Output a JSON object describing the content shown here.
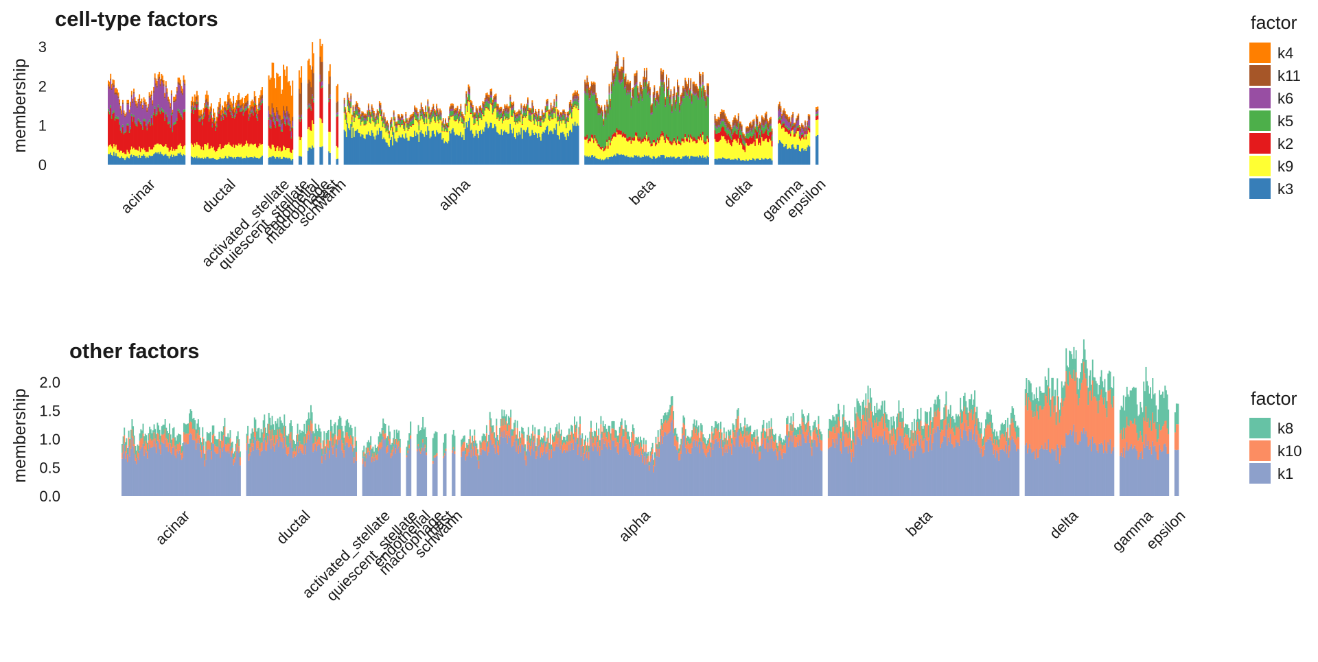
{
  "chart_data": [
    {
      "type": "stacked-bar",
      "title": "cell-type factors",
      "ylabel": "membership",
      "xlabel": "",
      "ylim": [
        0,
        3
      ],
      "yticks": [
        0,
        1,
        2,
        3
      ],
      "ytick_labels": [
        "0",
        "1",
        "2",
        "3"
      ],
      "grid": false,
      "legend": {
        "title": "factor",
        "position": "right",
        "labels": [
          "k4",
          "k11",
          "k6",
          "k5",
          "k2",
          "k9",
          "k3"
        ]
      },
      "colors": {
        "k4": "#FF7F00",
        "k11": "#A65628",
        "k6": "#984EA3",
        "k5": "#4DAF4A",
        "k2": "#E41A1C",
        "k9": "#FFFF33",
        "k3": "#377EB8"
      },
      "stack_order_bottom_to_top": [
        "k3",
        "k9",
        "k2",
        "k5",
        "k6",
        "k11",
        "k4"
      ],
      "groups": [
        {
          "label": "acinar",
          "width": 140,
          "profile": {
            "k3": 0.25,
            "k9": 0.2,
            "k2": 0.75,
            "k5": 0.06,
            "k6": 0.55,
            "k11": 0.05,
            "k4": 0.1
          }
        },
        {
          "label": "ductal",
          "width": 130,
          "profile": {
            "k3": 0.18,
            "k9": 0.3,
            "k2": 0.8,
            "k5": 0.05,
            "k6": 0.05,
            "k11": 0.08,
            "k4": 0.15
          }
        },
        {
          "label": "activated_stellate",
          "width": 45,
          "profile": {
            "k3": 0.18,
            "k9": 0.25,
            "k2": 0.6,
            "k5": 0.05,
            "k6": 0.15,
            "k11": 0.12,
            "k4": 0.9
          }
        },
        {
          "label": "quiescent_stellate",
          "width": 6,
          "profile": {
            "k3": 0.2,
            "k9": 0.5,
            "k2": 0.5,
            "k5": 0.05,
            "k6": 0.05,
            "k11": 0.7,
            "k4": 0.4
          }
        },
        {
          "label": "endothelial",
          "width": 12,
          "profile": {
            "k3": 0.4,
            "k9": 0.5,
            "k2": 0.5,
            "k5": 0.05,
            "k6": 0.05,
            "k11": 0.6,
            "k4": 0.5
          }
        },
        {
          "label": "macrophage",
          "width": 6,
          "profile": {
            "k3": 0.45,
            "k9": 0.6,
            "k2": 0.8,
            "k5": 0.05,
            "k6": 0.1,
            "k11": 0.5,
            "k4": 0.4
          }
        },
        {
          "label": "mast",
          "width": 4,
          "profile": {
            "k3": 0.3,
            "k9": 0.5,
            "k2": 0.8,
            "k5": 0.05,
            "k6": 0.05,
            "k11": 0.4,
            "k4": 0.3
          }
        },
        {
          "label": "schwann",
          "width": 4,
          "profile": {
            "k3": 0.15,
            "k9": 0.3,
            "k2": 0.7,
            "k5": 0.05,
            "k6": 0.05,
            "k11": 0.3,
            "k4": 0.4
          }
        },
        {
          "label": "alpha",
          "width": 425,
          "profile": {
            "k3": 0.85,
            "k9": 0.35,
            "k2": 0.02,
            "k5": 0.12,
            "k6": 0.05,
            "k11": 0.08,
            "k4": 0.05
          }
        },
        {
          "label": "beta",
          "width": 225,
          "profile": {
            "k3": 0.2,
            "k9": 0.4,
            "k2": 0.08,
            "k5": 1.05,
            "k6": 0.05,
            "k11": 0.2,
            "k4": 0.05
          }
        },
        {
          "label": "delta",
          "width": 105,
          "profile": {
            "k3": 0.15,
            "k9": 0.45,
            "k2": 0.2,
            "k5": 0.15,
            "k6": 0.05,
            "k11": 0.15,
            "k4": 0.05
          }
        },
        {
          "label": "gamma",
          "width": 58,
          "profile": {
            "k3": 0.5,
            "k9": 0.4,
            "k2": 0.1,
            "k5": 0.05,
            "k6": 0.15,
            "k11": 0.1,
            "k4": 0.05
          }
        },
        {
          "label": "epsilon",
          "width": 5,
          "profile": {
            "k3": 0.6,
            "k9": 0.4,
            "k2": 0.1,
            "k5": 0.05,
            "k6": 0.05,
            "k11": 0.05,
            "k4": 0.05
          }
        }
      ]
    },
    {
      "type": "stacked-bar",
      "title": "other factors",
      "ylabel": "membership",
      "xlabel": "",
      "ylim": [
        0,
        2.0
      ],
      "yticks": [
        0,
        0.5,
        1.0,
        1.5,
        2.0
      ],
      "ytick_labels": [
        "0.0",
        "0.5",
        "1.0",
        "1.5",
        "2.0"
      ],
      "grid": false,
      "legend": {
        "title": "factor",
        "position": "right",
        "labels": [
          "k8",
          "k10",
          "k1"
        ]
      },
      "colors": {
        "k8": "#66C2A5",
        "k10": "#FC8D62",
        "k1": "#8DA0CB"
      },
      "stack_order_bottom_to_top": [
        "k1",
        "k10",
        "k8"
      ],
      "groups": [
        {
          "label": "acinar",
          "width": 140,
          "profile": {
            "k1": 0.8,
            "k10": 0.15,
            "k8": 0.15
          }
        },
        {
          "label": "ductal",
          "width": 130,
          "profile": {
            "k1": 0.85,
            "k10": 0.15,
            "k8": 0.2
          }
        },
        {
          "label": "activated_stellate",
          "width": 45,
          "profile": {
            "k1": 0.78,
            "k10": 0.1,
            "k8": 0.15
          }
        },
        {
          "label": "quiescent_stellate",
          "width": 6,
          "profile": {
            "k1": 0.8,
            "k10": 0.05,
            "k8": 0.2
          }
        },
        {
          "label": "endothelial",
          "width": 12,
          "profile": {
            "k1": 0.8,
            "k10": 0.05,
            "k8": 0.3
          }
        },
        {
          "label": "macrophage",
          "width": 6,
          "profile": {
            "k1": 0.75,
            "k10": 0.05,
            "k8": 0.4
          }
        },
        {
          "label": "mast",
          "width": 4,
          "profile": {
            "k1": 0.75,
            "k10": 0.05,
            "k8": 0.3
          }
        },
        {
          "label": "schwann",
          "width": 4,
          "profile": {
            "k1": 0.75,
            "k10": 0.05,
            "k8": 0.3
          }
        },
        {
          "label": "alpha",
          "width": 425,
          "profile": {
            "k1": 0.87,
            "k10": 0.18,
            "k8": 0.12
          }
        },
        {
          "label": "beta",
          "width": 225,
          "profile": {
            "k1": 0.9,
            "k10": 0.25,
            "k8": 0.2
          }
        },
        {
          "label": "delta",
          "width": 105,
          "profile": {
            "k1": 0.85,
            "k10": 0.8,
            "k8": 0.3
          }
        },
        {
          "label": "gamma",
          "width": 58,
          "profile": {
            "k1": 0.85,
            "k10": 0.4,
            "k8": 0.55
          }
        },
        {
          "label": "epsilon",
          "width": 5,
          "profile": {
            "k1": 0.85,
            "k10": 0.4,
            "k8": 0.4
          }
        }
      ]
    }
  ]
}
